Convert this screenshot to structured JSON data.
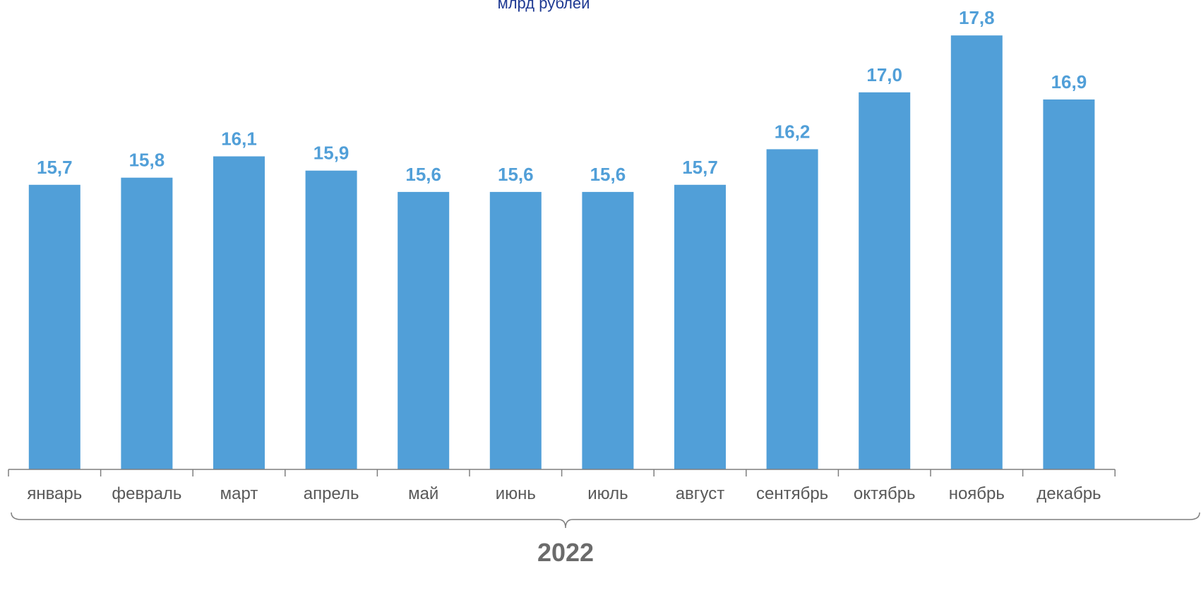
{
  "subtitle": "млрд рублей",
  "group_label": "2022",
  "colors": {
    "bar": "#519fd8",
    "value_label": "#519fd8",
    "subtitle": "#1f3a93",
    "axis": "#7f7f7f"
  },
  "chart_data": {
    "type": "bar",
    "title": "",
    "subtitle": "млрд рублей",
    "xlabel": "",
    "ylabel": "",
    "group": "2022",
    "categories": [
      "январь",
      "февраль",
      "март",
      "апрель",
      "май",
      "июнь",
      "июль",
      "август",
      "сентябрь",
      "октябрь",
      "ноябрь",
      "декабрь"
    ],
    "values": [
      15.7,
      15.8,
      16.1,
      15.9,
      15.6,
      15.6,
      15.6,
      15.7,
      16.2,
      17.0,
      17.8,
      16.9
    ],
    "value_labels": [
      "15,7",
      "15,8",
      "16,1",
      "15,9",
      "15,6",
      "15,6",
      "15,6",
      "15,7",
      "16,2",
      "17,0",
      "17,8",
      "16,9"
    ],
    "ylim": [
      11.7,
      18.0
    ],
    "grid": false,
    "legend": "none"
  }
}
